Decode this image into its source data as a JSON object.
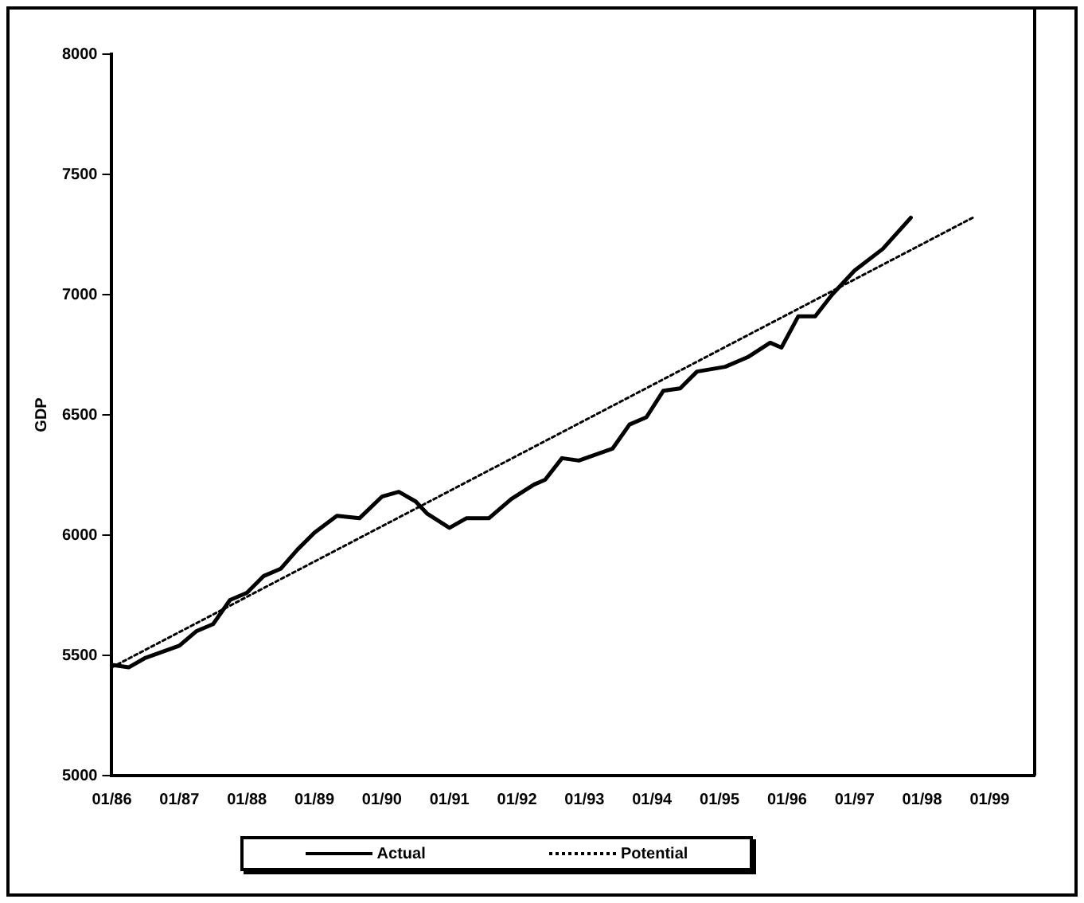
{
  "chart_data": {
    "type": "line",
    "ylabel": "GDP",
    "xlim": [
      "1986-01",
      "1999-09"
    ],
    "xticks": [
      {
        "value": "1986-01",
        "label": "01/86"
      },
      {
        "value": "1987-01",
        "label": "01/87"
      },
      {
        "value": "1988-01",
        "label": "01/88"
      },
      {
        "value": "1989-01",
        "label": "01/89"
      },
      {
        "value": "1990-01",
        "label": "01/90"
      },
      {
        "value": "1991-01",
        "label": "01/91"
      },
      {
        "value": "1992-01",
        "label": "01/92"
      },
      {
        "value": "1993-01",
        "label": "01/93"
      },
      {
        "value": "1994-01",
        "label": "01/94"
      },
      {
        "value": "1995-01",
        "label": "01/95"
      },
      {
        "value": "1996-01",
        "label": "01/96"
      },
      {
        "value": "1997-01",
        "label": "01/97"
      },
      {
        "value": "1998-01",
        "label": "01/98"
      },
      {
        "value": "1999-01",
        "label": "01/99"
      }
    ],
    "ylim": [
      5000,
      8000
    ],
    "yticks": [
      5000,
      5500,
      6000,
      6500,
      7000,
      7500,
      8000
    ],
    "grid": false,
    "legend": "bottom",
    "marker": "none",
    "series": [
      {
        "name": "Actual",
        "color": "#000000",
        "line_style": "solid",
        "x": [
          "1986-01",
          "1986-04",
          "1986-07",
          "1987-01",
          "1987-04",
          "1987-07",
          "1987-10",
          "1988-01",
          "1988-04",
          "1988-07",
          "1988-10",
          "1989-01",
          "1989-05",
          "1989-09",
          "1990-01",
          "1990-04",
          "1990-07",
          "1990-09",
          "1991-01",
          "1991-04",
          "1991-08",
          "1991-12",
          "1992-04",
          "1992-06",
          "1992-09",
          "1992-12",
          "1993-06",
          "1993-09",
          "1993-12",
          "1994-03",
          "1994-06",
          "1994-09",
          "1995-02",
          "1995-06",
          "1995-10",
          "1995-12",
          "1996-03",
          "1996-06",
          "1996-09",
          "1997-01",
          "1997-06",
          "1997-11"
        ],
        "values": [
          5460,
          5450,
          5490,
          5540,
          5600,
          5630,
          5730,
          5760,
          5830,
          5860,
          5940,
          6010,
          6080,
          6070,
          6160,
          6180,
          6140,
          6090,
          6030,
          6070,
          6070,
          6150,
          6210,
          6230,
          6320,
          6310,
          6360,
          6460,
          6490,
          6600,
          6610,
          6680,
          6700,
          6740,
          6800,
          6780,
          6910,
          6910,
          7000,
          7100,
          7190,
          7320
        ]
      },
      {
        "name": "Potential",
        "color": "#000000",
        "line_style": "dotted",
        "x": [
          "1986-01",
          "1998-10"
        ],
        "values": [
          5450,
          7320
        ]
      }
    ]
  }
}
